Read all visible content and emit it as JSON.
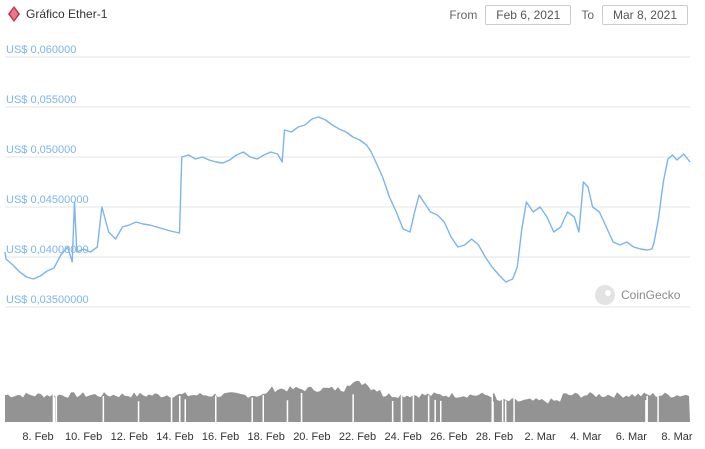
{
  "header": {
    "title": "Gráfico Ether-1",
    "from_label": "From",
    "from_value": "Feb 6, 2021",
    "to_label": "To",
    "to_value": "Mar 8, 2021"
  },
  "watermark": {
    "text": "CoinGecko",
    "icon": "gecko-icon"
  },
  "colors": {
    "price_line": "#7cb5ec",
    "volume": "#939393",
    "grid": "#e6e6e6",
    "logo": "#c0304a"
  },
  "chart_data": {
    "type": "line",
    "title": "Gráfico Ether-1",
    "ylabel": "",
    "xlabel": "",
    "y_ticks": [
      {
        "value": 0.06,
        "label": "US$ 0,060000"
      },
      {
        "value": 0.055,
        "label": "US$ 0,055000"
      },
      {
        "value": 0.05,
        "label": "US$ 0,050000"
      },
      {
        "value": 0.045,
        "label": "US$ 0,04500000"
      },
      {
        "value": 0.04,
        "label": "US$ 0,04000000"
      },
      {
        "value": 0.035,
        "label": "US$ 0,03500000"
      }
    ],
    "ylim": [
      0.0325,
      0.0625
    ],
    "xlim": [
      6.3,
      36.0
    ],
    "x_ticks": [
      {
        "day": 8,
        "label": "8. Feb"
      },
      {
        "day": 10,
        "label": "10. Feb"
      },
      {
        "day": 12,
        "label": "12. Feb"
      },
      {
        "day": 14,
        "label": "14. Feb"
      },
      {
        "day": 16,
        "label": "16. Feb"
      },
      {
        "day": 18,
        "label": "18. Feb"
      },
      {
        "day": 20,
        "label": "20. Feb"
      },
      {
        "day": 22,
        "label": "22. Feb"
      },
      {
        "day": 24,
        "label": "24. Feb"
      },
      {
        "day": 26,
        "label": "26. Feb"
      },
      {
        "day": 28,
        "label": "28. Feb"
      },
      {
        "day": 30,
        "label": "2. Mar"
      },
      {
        "day": 32,
        "label": "4. Mar"
      },
      {
        "day": 34,
        "label": "6. Mar"
      },
      {
        "day": 36,
        "label": "8. Mar"
      }
    ],
    "series": [
      {
        "values": [
          [
            6.3,
            0.0405
          ],
          [
            6.6,
            0.0398
          ],
          [
            6.9,
            0.0392
          ],
          [
            7.2,
            0.0385
          ],
          [
            7.5,
            0.038
          ],
          [
            7.8,
            0.0378
          ],
          [
            8.1,
            0.0381
          ],
          [
            8.4,
            0.0386
          ],
          [
            8.7,
            0.0389
          ],
          [
            9.0,
            0.0402
          ],
          [
            9.3,
            0.041
          ],
          [
            9.5,
            0.0395
          ],
          [
            9.6,
            0.0455
          ],
          [
            9.7,
            0.0405
          ],
          [
            10.0,
            0.0408
          ],
          [
            10.3,
            0.0405
          ],
          [
            10.6,
            0.041
          ],
          [
            10.8,
            0.045
          ],
          [
            11.1,
            0.0425
          ],
          [
            11.4,
            0.0418
          ],
          [
            11.7,
            0.043
          ],
          [
            12.0,
            0.0432
          ],
          [
            12.3,
            0.0435
          ],
          [
            12.6,
            0.0433
          ],
          [
            12.9,
            0.0432
          ],
          [
            13.2,
            0.043
          ],
          [
            13.5,
            0.0428
          ],
          [
            13.8,
            0.0426
          ],
          [
            14.0,
            0.0425
          ],
          [
            14.2,
            0.0424
          ],
          [
            14.3,
            0.05
          ],
          [
            14.6,
            0.0502
          ],
          [
            14.9,
            0.0498
          ],
          [
            15.2,
            0.05
          ],
          [
            15.5,
            0.0497
          ],
          [
            15.8,
            0.0495
          ],
          [
            16.1,
            0.0494
          ],
          [
            16.4,
            0.0497
          ],
          [
            16.7,
            0.0502
          ],
          [
            17.0,
            0.0505
          ],
          [
            17.3,
            0.05
          ],
          [
            17.6,
            0.0498
          ],
          [
            17.9,
            0.0502
          ],
          [
            18.2,
            0.0505
          ],
          [
            18.5,
            0.0503
          ],
          [
            18.7,
            0.0495
          ],
          [
            18.8,
            0.0527
          ],
          [
            19.1,
            0.0525
          ],
          [
            19.4,
            0.053
          ],
          [
            19.7,
            0.0532
          ],
          [
            20.0,
            0.0538
          ],
          [
            20.3,
            0.054
          ],
          [
            20.6,
            0.0537
          ],
          [
            20.9,
            0.0532
          ],
          [
            21.2,
            0.0528
          ],
          [
            21.5,
            0.0525
          ],
          [
            21.8,
            0.052
          ],
          [
            22.1,
            0.0517
          ],
          [
            22.4,
            0.0512
          ],
          [
            22.6,
            0.0505
          ],
          [
            22.8,
            0.0495
          ],
          [
            23.1,
            0.048
          ],
          [
            23.4,
            0.046
          ],
          [
            23.7,
            0.0445
          ],
          [
            24.0,
            0.0428
          ],
          [
            24.3,
            0.0425
          ],
          [
            24.5,
            0.0445
          ],
          [
            24.7,
            0.0462
          ],
          [
            24.9,
            0.0455
          ],
          [
            25.2,
            0.0445
          ],
          [
            25.5,
            0.0442
          ],
          [
            25.8,
            0.0435
          ],
          [
            26.1,
            0.042
          ],
          [
            26.4,
            0.041
          ],
          [
            26.7,
            0.0412
          ],
          [
            27.0,
            0.0418
          ],
          [
            27.3,
            0.0412
          ],
          [
            27.6,
            0.04
          ],
          [
            27.9,
            0.039
          ],
          [
            28.2,
            0.0382
          ],
          [
            28.5,
            0.0375
          ],
          [
            28.8,
            0.0378
          ],
          [
            29.0,
            0.039
          ],
          [
            29.2,
            0.0428
          ],
          [
            29.4,
            0.0455
          ],
          [
            29.7,
            0.0445
          ],
          [
            30.0,
            0.045
          ],
          [
            30.3,
            0.044
          ],
          [
            30.6,
            0.0425
          ],
          [
            30.9,
            0.043
          ],
          [
            31.2,
            0.0445
          ],
          [
            31.5,
            0.044
          ],
          [
            31.7,
            0.0425
          ],
          [
            31.9,
            0.0475
          ],
          [
            32.1,
            0.047
          ],
          [
            32.3,
            0.045
          ],
          [
            32.6,
            0.0445
          ],
          [
            32.9,
            0.043
          ],
          [
            33.2,
            0.0415
          ],
          [
            33.5,
            0.0412
          ],
          [
            33.8,
            0.0415
          ],
          [
            34.1,
            0.041
          ],
          [
            34.4,
            0.0408
          ],
          [
            34.7,
            0.0407
          ],
          [
            34.9,
            0.0408
          ],
          [
            35.0,
            0.0415
          ],
          [
            35.2,
            0.044
          ],
          [
            35.4,
            0.0475
          ],
          [
            35.6,
            0.0498
          ],
          [
            35.8,
            0.0502
          ],
          [
            36.0,
            0.0497
          ],
          [
            36.3,
            0.0503
          ],
          [
            36.6,
            0.0495
          ]
        ]
      }
    ],
    "legend": "none",
    "grid": true
  }
}
